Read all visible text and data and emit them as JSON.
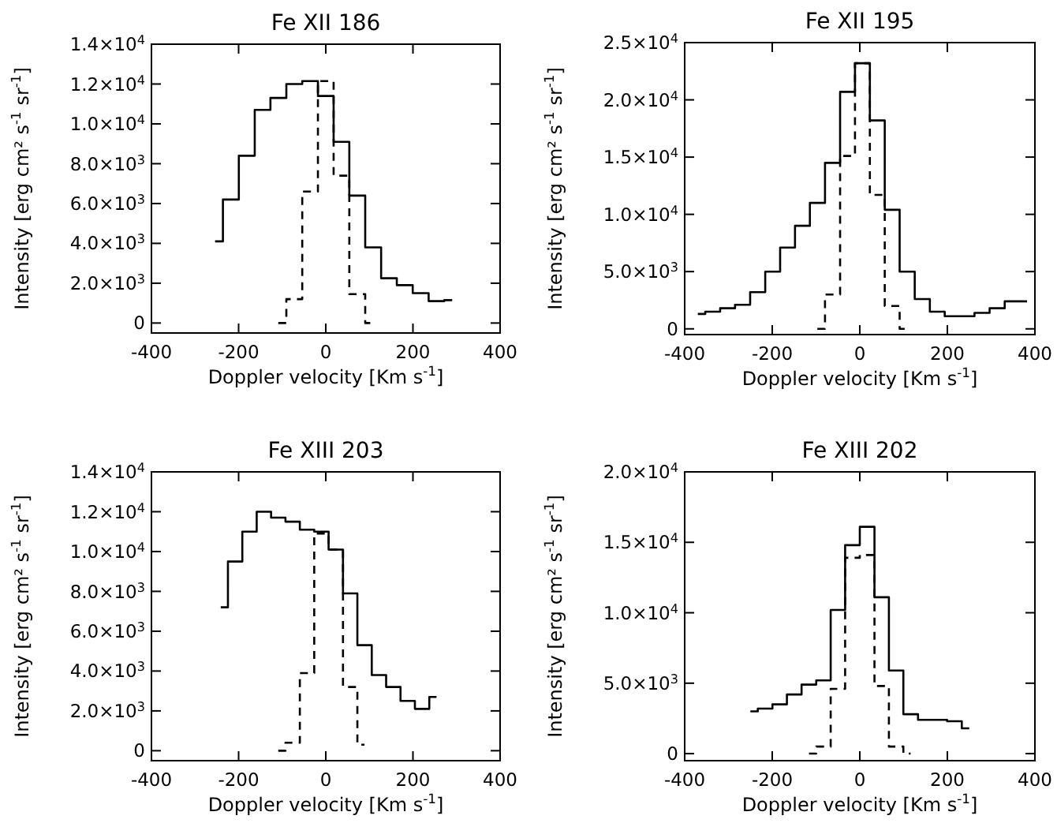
{
  "chart_data": [
    {
      "type": "step",
      "title": "Fe XII 186",
      "xlabel": "Doppler velocity [Km s$^{-1}$]",
      "ylabel": "Intensity [erg cm² s$^{-1}$ sr$^{-1}$]",
      "xlim": [
        -400,
        400
      ],
      "xticks": [
        -400,
        -200,
        0,
        200,
        400
      ],
      "ylim": [
        -500,
        14000
      ],
      "yticks": [
        {
          "value": 0,
          "label": "0"
        },
        {
          "value": 2000,
          "label": "2.0×10$^{3}$"
        },
        {
          "value": 4000,
          "label": "4.0×10$^{3}$"
        },
        {
          "value": 6000,
          "label": "6.0×10$^{3}$"
        },
        {
          "value": 8000,
          "label": "8.0×10$^{3}$"
        },
        {
          "value": 10000,
          "label": "1.0×10$^{4}$"
        },
        {
          "value": 12000,
          "label": "1.2×10$^{4}$"
        },
        {
          "value": 14000,
          "label": "1.4×10$^{4}$"
        }
      ],
      "series": [
        {
          "color": "#000000",
          "line_style": "solid",
          "x": [
            -254,
            -218,
            -181,
            -145,
            -109,
            -72,
            -36,
            0,
            36,
            72,
            109,
            145,
            181,
            218,
            254,
            290
          ],
          "values": [
            4100,
            6200,
            8400,
            10700,
            11300,
            12000,
            12150,
            11400,
            9100,
            6400,
            3800,
            2250,
            1900,
            1500,
            1100,
            1150
          ]
        },
        {
          "color": "#000000",
          "line_style": "dashed",
          "x": [
            -109,
            -72,
            -36,
            0,
            36,
            72,
            109
          ],
          "values": [
            0,
            1200,
            6600,
            12150,
            7400,
            1450,
            0
          ]
        }
      ]
    },
    {
      "type": "step",
      "title": "Fe XII 195",
      "xlabel": "Doppler velocity [Km s$^{-1}$]",
      "ylabel": "Intensity [erg cm² s$^{-1}$ sr$^{-1}$]",
      "xlim": [
        -400,
        400
      ],
      "xticks": [
        -400,
        -200,
        0,
        200,
        400
      ],
      "ylim": [
        -500,
        25000
      ],
      "yticks": [
        {
          "value": 0,
          "label": "0"
        },
        {
          "value": 5000,
          "label": "5.0×10$^{3}$"
        },
        {
          "value": 10000,
          "label": "1.0×10$^{4}$"
        },
        {
          "value": 15000,
          "label": "1.5×10$^{4}$"
        },
        {
          "value": 20000,
          "label": "2.0×10$^{4}$"
        },
        {
          "value": 25000,
          "label": "2.5×10$^{4}$"
        }
      ],
      "series": [
        {
          "color": "#000000",
          "line_style": "solid",
          "x": [
            -370,
            -336,
            -302,
            -268,
            -233,
            -199,
            -165,
            -131,
            -97,
            -62,
            -28,
            6,
            40,
            74,
            108,
            143,
            177,
            211,
            245,
            279,
            314,
            348,
            382
          ],
          "values": [
            1300,
            1500,
            1800,
            2100,
            3200,
            5000,
            7100,
            9000,
            11000,
            14500,
            20700,
            23200,
            18200,
            10400,
            5000,
            2600,
            1500,
            1100,
            1100,
            1400,
            1800,
            2400,
            2400
          ]
        },
        {
          "color": "#000000",
          "line_style": "dashed",
          "x": [
            -97,
            -62,
            -28,
            6,
            40,
            74,
            108
          ],
          "values": [
            0,
            3000,
            15100,
            23200,
            11700,
            2000,
            0
          ]
        }
      ]
    },
    {
      "type": "step",
      "title": "Fe XIII 203",
      "xlabel": "Doppler velocity [Km s$^{-1}$]",
      "ylabel": "Intensity [erg cm² s$^{-1}$ sr$^{-1}$]",
      "xlim": [
        -400,
        400
      ],
      "xticks": [
        -400,
        -200,
        0,
        200,
        400
      ],
      "ylim": [
        -500,
        14000
      ],
      "yticks": [
        {
          "value": 0,
          "label": "0"
        },
        {
          "value": 2000,
          "label": "2.0×10$^{3}$"
        },
        {
          "value": 4000,
          "label": "4.0×10$^{3}$"
        },
        {
          "value": 6000,
          "label": "6.0×10$^{3}$"
        },
        {
          "value": 8000,
          "label": "8.0×10$^{3}$"
        },
        {
          "value": 10000,
          "label": "1.0×10$^{4}$"
        },
        {
          "value": 12000,
          "label": "1.2×10$^{4}$"
        },
        {
          "value": 14000,
          "label": "1.4×10$^{4}$"
        }
      ],
      "series": [
        {
          "color": "#000000",
          "line_style": "solid",
          "x": [
            -241,
            -208,
            -175,
            -142,
            -109,
            -76,
            -43,
            -10,
            23,
            56,
            89,
            122,
            155,
            188,
            221,
            254
          ],
          "values": [
            7200,
            9500,
            11000,
            12000,
            11700,
            11500,
            11100,
            11000,
            10100,
            7900,
            5300,
            3800,
            3200,
            2500,
            2100,
            2700
          ]
        },
        {
          "color": "#000000",
          "line_style": "dashed",
          "x": [
            -109,
            -76,
            -43,
            -10,
            23,
            56,
            89
          ],
          "values": [
            0,
            400,
            3900,
            10900,
            10100,
            3200,
            300
          ]
        }
      ]
    },
    {
      "type": "step",
      "title": "Fe XIII 202",
      "xlabel": "Doppler velocity [Km s$^{-1}$]",
      "ylabel": "Intensity [erg cm² s$^{-1}$ sr$^{-1}$]",
      "xlim": [
        -400,
        400
      ],
      "xticks": [
        -400,
        -200,
        0,
        200,
        400
      ],
      "ylim": [
        -500,
        20000
      ],
      "yticks": [
        {
          "value": 0,
          "label": "0"
        },
        {
          "value": 5000,
          "label": "5.0×10$^{3}$"
        },
        {
          "value": 10000,
          "label": "1.0×10$^{4}$"
        },
        {
          "value": 15000,
          "label": "1.5×10$^{4}$"
        },
        {
          "value": 20000,
          "label": "2.0×10$^{4}$"
        }
      ],
      "series": [
        {
          "color": "#000000",
          "line_style": "solid",
          "x": [
            -250,
            -216,
            -183,
            -150,
            -116,
            -83,
            -50,
            -17,
            17,
            50,
            83,
            116,
            150,
            183,
            216,
            250
          ],
          "values": [
            3000,
            3200,
            3500,
            4200,
            4900,
            5200,
            10200,
            14800,
            16100,
            11100,
            5900,
            2800,
            2400,
            2400,
            2300,
            1800
          ]
        },
        {
          "color": "#000000",
          "line_style": "dashed",
          "x": [
            -116,
            -83,
            -50,
            -17,
            17,
            50,
            83,
            116
          ],
          "values": [
            0,
            500,
            4600,
            13900,
            14100,
            4800,
            500,
            0
          ]
        }
      ]
    }
  ]
}
